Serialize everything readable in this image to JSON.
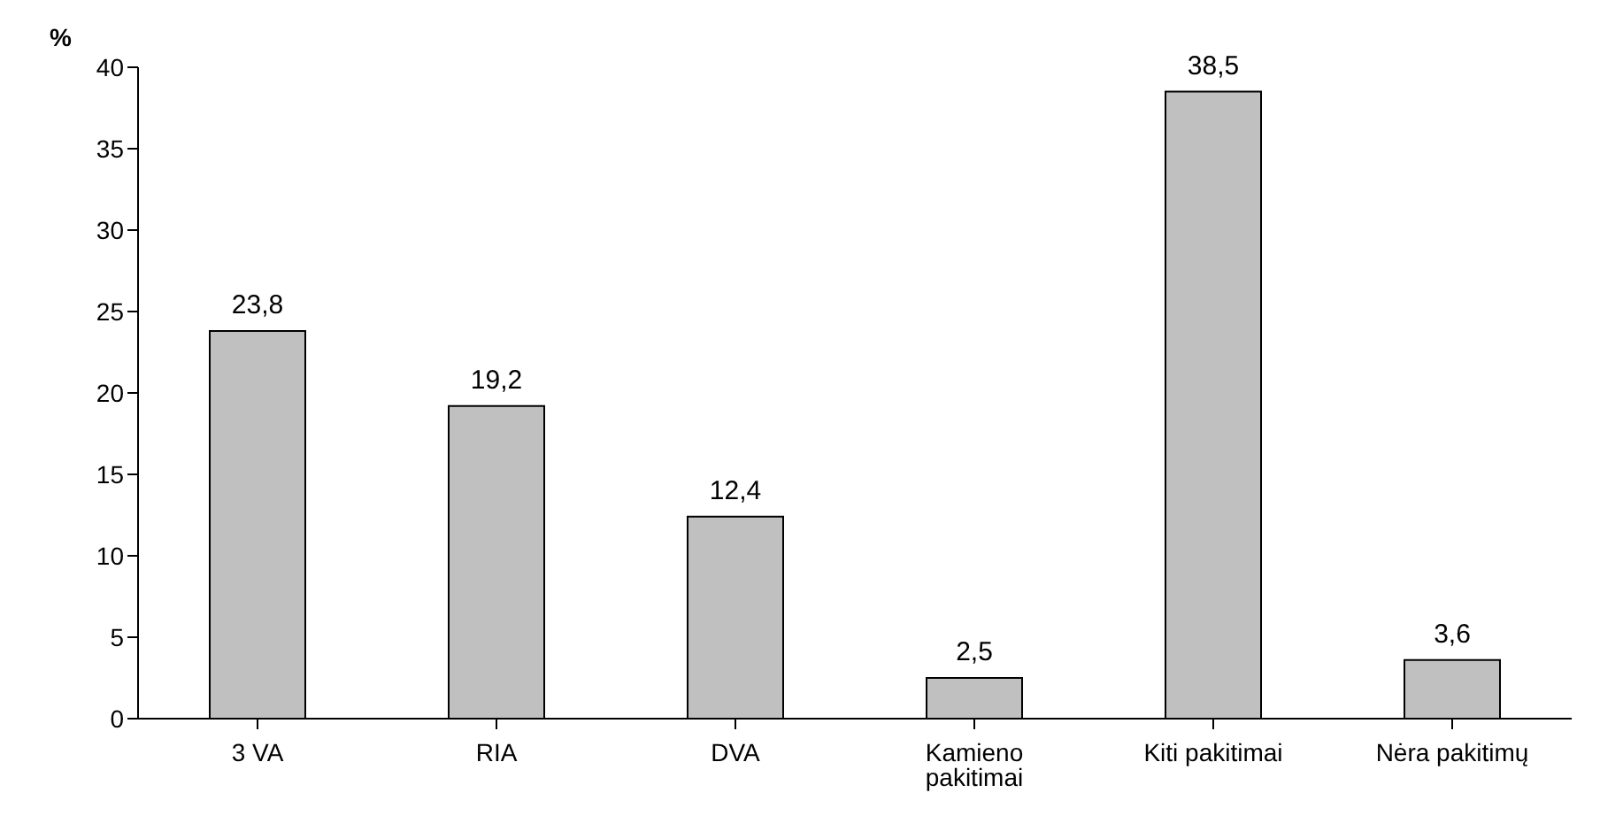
{
  "chart_data": {
    "type": "bar",
    "ylabel": "%",
    "categories": [
      "3 VA",
      "RIA",
      "DVA",
      "Kamieno pakitimai",
      "Kiti pakitimai",
      "Nėra pakitimų"
    ],
    "values": [
      23.8,
      19.2,
      12.4,
      2.5,
      38.5,
      3.6
    ],
    "value_labels": [
      "23,8",
      "19,2",
      "12,4",
      "2,5",
      "38,5",
      "3,6"
    ],
    "color": "#c0c0c0",
    "ylim": [
      0,
      40
    ],
    "yticks": [
      0,
      5,
      10,
      15,
      20,
      25,
      30,
      35,
      40
    ],
    "grid": false,
    "legend": false
  }
}
